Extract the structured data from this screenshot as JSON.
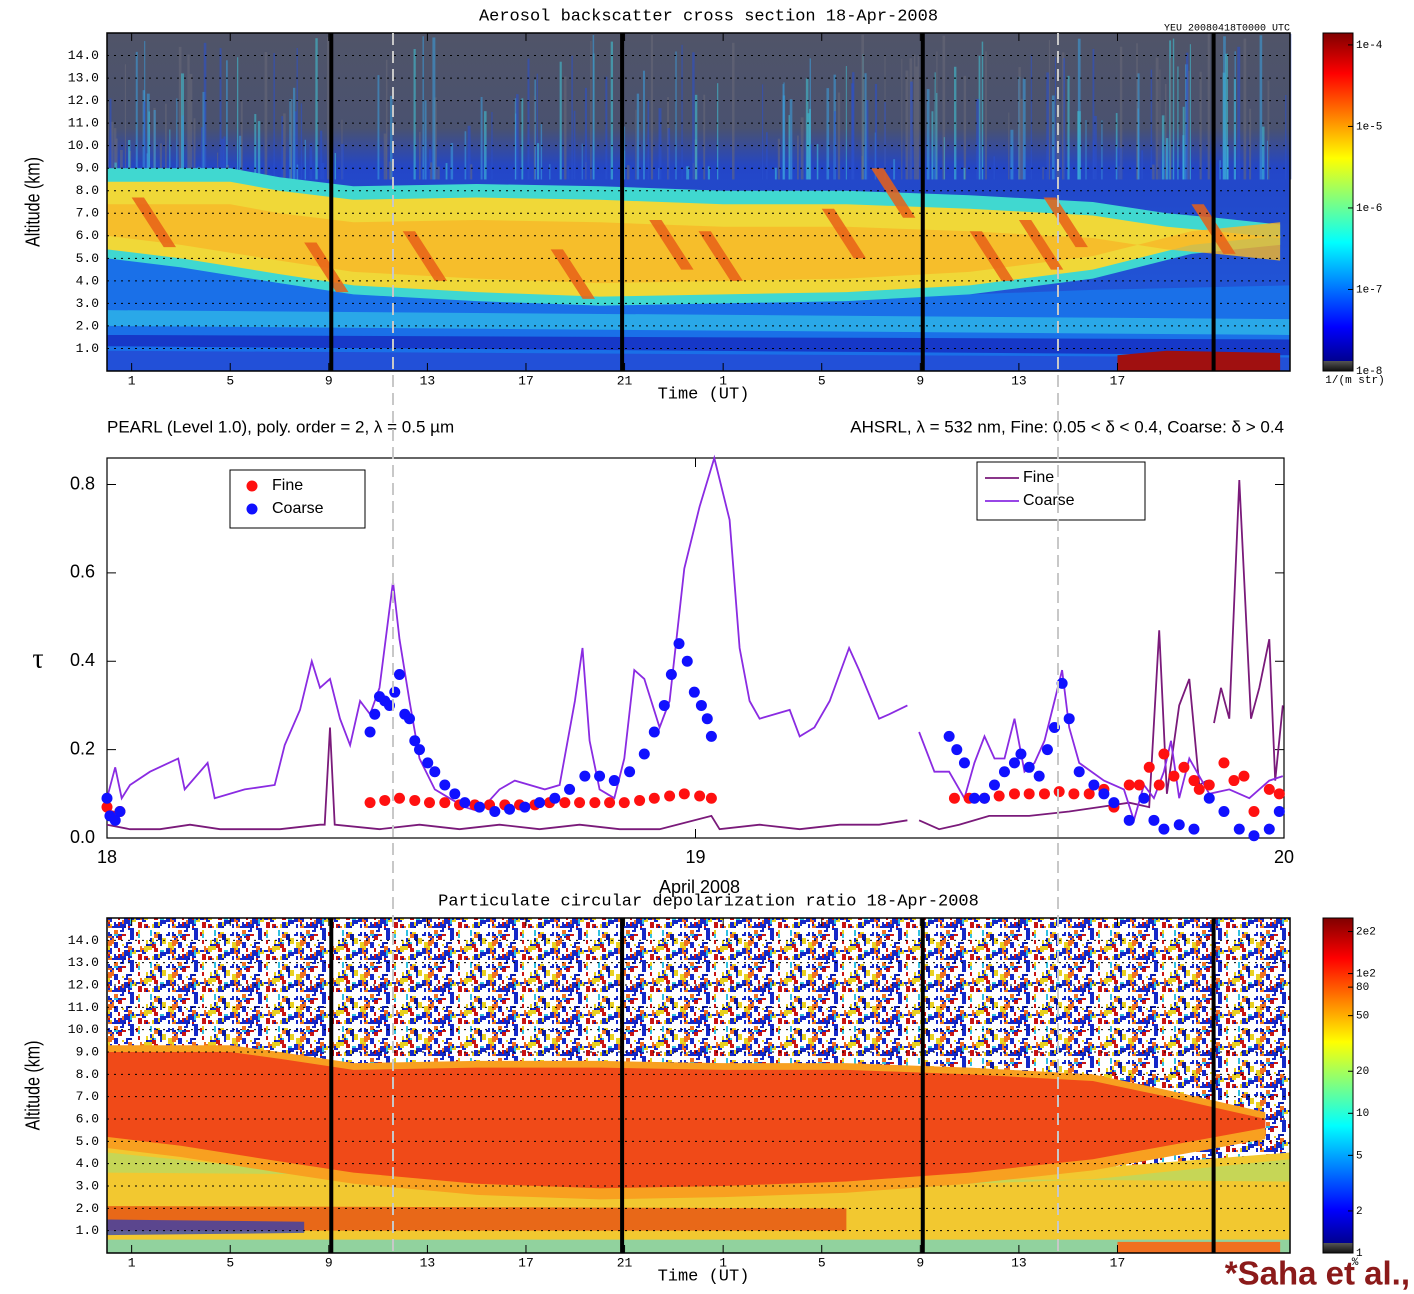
{
  "chart_data": [
    {
      "type": "heatmap",
      "title": "Aerosol backscatter cross section   18-Apr-2008",
      "stamp": "YEU    20080418T0000 UTC",
      "xlabel": "Time (UT)",
      "ylabel": "Altitude (km)",
      "xlim": [
        0,
        48
      ],
      "xticks": [
        1,
        5,
        9,
        13,
        17,
        21,
        {
          "value": 25,
          "label": "1"
        },
        {
          "value": 29,
          "label": "5"
        },
        {
          "value": 33,
          "label": "9"
        },
        {
          "value": 37,
          "label": "13"
        },
        {
          "value": 41,
          "label": "17"
        }
      ],
      "ylim": [
        0,
        15
      ],
      "yticks": [
        {
          "value": 1,
          "label": "1.0"
        },
        {
          "value": 2,
          "label": "2.0"
        },
        {
          "value": 3,
          "label": "3.0"
        },
        {
          "value": 4,
          "label": "4.0"
        },
        {
          "value": 5,
          "label": "5.0"
        },
        {
          "value": 6,
          "label": "6.0"
        },
        {
          "value": 7,
          "label": "7.0"
        },
        {
          "value": 8,
          "label": "8.0"
        },
        {
          "value": 9,
          "label": "9.0"
        },
        {
          "value": 10,
          "label": "10.0"
        },
        {
          "value": 11,
          "label": "11.0"
        },
        {
          "value": 12,
          "label": "12.0"
        },
        {
          "value": 13,
          "label": "13.0"
        },
        {
          "value": 14,
          "label": "14.0"
        }
      ],
      "grid": true,
      "colorbar": {
        "label": "1/(m str)",
        "scale": "log",
        "lim": [
          1e-08,
          0.00014
        ],
        "ticks": [
          {
            "value": 0.0001,
            "label": "1e-4"
          },
          {
            "value": 1e-05,
            "label": "1e-5"
          },
          {
            "value": 1e-06,
            "label": "1e-6"
          },
          {
            "value": 1e-07,
            "label": "1e-7"
          },
          {
            "value": 1e-08,
            "label": "1e-8"
          }
        ]
      }
    },
    {
      "type": "line",
      "title_left": "PEARL (Level 1.0), poly. order = 2, λ = 0.5 µm",
      "title_right": "AHSRL, λ = 532 nm, Fine: 0.05 < δ < 0.4, Coarse:  δ > 0.4",
      "xlabel": "April 2008",
      "ylabel": "τ",
      "xlim": [
        18,
        20
      ],
      "xticks": [
        18,
        19,
        20
      ],
      "ylim": [
        0,
        0.86
      ],
      "yticks": [
        {
          "value": 0,
          "label": "0.0"
        },
        0.2,
        0.4,
        0.6,
        0.8
      ],
      "series": [
        {
          "name": "Fine",
          "mark": "dot",
          "legend": "upper-left",
          "color": "#ff1010",
          "x": [
            18.0,
            18.008,
            18.022,
            18.447,
            18.472,
            18.497,
            18.523,
            18.548,
            18.574,
            18.599,
            18.625,
            18.65,
            18.676,
            18.701,
            18.727,
            18.752,
            18.778,
            18.803,
            18.829,
            18.854,
            18.879,
            18.905,
            18.93,
            18.956,
            18.981,
            19.007,
            19.027,
            19.44,
            19.465,
            19.491,
            19.516,
            19.542,
            19.567,
            19.593,
            19.618,
            19.643,
            19.669,
            19.694,
            19.711,
            19.737,
            19.754,
            19.771,
            19.788,
            19.796,
            19.813,
            19.83,
            19.847,
            19.856,
            19.873,
            19.898,
            19.915,
            19.932,
            19.949,
            19.975,
            19.992
          ],
          "values": [
            0.07,
            0.05,
            0.06,
            0.08,
            0.085,
            0.09,
            0.085,
            0.08,
            0.08,
            0.075,
            0.075,
            0.075,
            0.075,
            0.075,
            0.075,
            0.08,
            0.08,
            0.08,
            0.08,
            0.08,
            0.08,
            0.085,
            0.09,
            0.095,
            0.1,
            0.095,
            0.09,
            0.09,
            0.09,
            0.09,
            0.095,
            0.1,
            0.1,
            0.1,
            0.105,
            0.1,
            0.1,
            0.11,
            0.07,
            0.12,
            0.12,
            0.16,
            0.12,
            0.19,
            0.14,
            0.16,
            0.13,
            0.11,
            0.12,
            0.17,
            0.13,
            0.14,
            0.06,
            0.11,
            0.1
          ]
        },
        {
          "name": "Coarse",
          "mark": "dot",
          "legend": "upper-left",
          "color": "#1010ff",
          "x": [
            18.0,
            18.005,
            18.014,
            18.022,
            18.447,
            18.455,
            18.463,
            18.472,
            18.48,
            18.489,
            18.497,
            18.506,
            18.514,
            18.523,
            18.531,
            18.545,
            18.557,
            18.574,
            18.591,
            18.608,
            18.633,
            18.659,
            18.684,
            18.71,
            18.735,
            18.761,
            18.786,
            18.812,
            18.837,
            18.862,
            18.888,
            18.913,
            18.93,
            18.947,
            18.959,
            18.972,
            18.986,
            18.998,
            19.01,
            19.02,
            19.027,
            19.431,
            19.444,
            19.457,
            19.474,
            19.491,
            19.508,
            19.525,
            19.542,
            19.553,
            19.567,
            19.584,
            19.598,
            19.61,
            19.623,
            19.635,
            19.652,
            19.677,
            19.694,
            19.711,
            19.737,
            19.762,
            19.779,
            19.796,
            19.822,
            19.847,
            19.873,
            19.898,
            19.924,
            19.949,
            19.975,
            19.992
          ],
          "values": [
            0.09,
            0.05,
            0.04,
            0.06,
            0.24,
            0.28,
            0.32,
            0.31,
            0.3,
            0.33,
            0.37,
            0.28,
            0.27,
            0.22,
            0.2,
            0.17,
            0.15,
            0.12,
            0.1,
            0.08,
            0.07,
            0.06,
            0.065,
            0.07,
            0.08,
            0.09,
            0.11,
            0.14,
            0.14,
            0.13,
            0.15,
            0.19,
            0.24,
            0.3,
            0.37,
            0.44,
            0.4,
            0.33,
            0.3,
            0.27,
            0.23,
            0.23,
            0.2,
            0.17,
            0.09,
            0.09,
            0.12,
            0.15,
            0.17,
            0.19,
            0.16,
            0.14,
            0.2,
            0.25,
            0.35,
            0.27,
            0.15,
            0.12,
            0.1,
            0.08,
            0.04,
            0.09,
            0.04,
            0.02,
            0.03,
            0.02,
            0.09,
            0.06,
            0.02,
            0.005,
            0.02,
            0.06
          ]
        },
        {
          "name": "Fine",
          "mark": "line",
          "legend": "upper-right",
          "color": "#7a1a7a",
          "x": [
            18.0,
            18.039,
            18.09,
            18.141,
            18.192,
            18.243,
            18.294,
            18.362,
            18.37,
            18.379,
            18.387,
            18.463,
            18.531,
            18.599,
            18.667,
            18.735,
            18.803,
            18.871,
            18.939,
            19.027,
            19.041,
            19.109,
            19.177,
            19.245,
            19.312,
            19.36,
            null,
            19.38,
            19.414,
            19.448,
            19.499,
            19.567,
            19.635,
            19.686,
            19.737,
            19.771,
            19.788,
            19.801,
            19.822,
            19.839,
            19.856,
            19.869,
            null,
            19.881,
            19.893,
            19.907,
            19.924,
            19.944,
            19.958,
            19.975,
            19.985,
            19.998
          ],
          "values": [
            0.03,
            0.02,
            0.02,
            0.03,
            0.02,
            0.02,
            0.02,
            0.03,
            0.03,
            0.25,
            0.03,
            0.02,
            0.03,
            0.02,
            0.03,
            0.02,
            0.03,
            0.02,
            0.02,
            0.05,
            0.02,
            0.03,
            0.02,
            0.03,
            0.03,
            0.04,
            null,
            0.04,
            0.02,
            0.03,
            0.05,
            0.05,
            0.06,
            0.07,
            0.08,
            0.07,
            0.47,
            0.1,
            0.3,
            0.36,
            0.12,
            0.13,
            null,
            0.26,
            0.34,
            0.27,
            0.81,
            0.27,
            0.34,
            0.45,
            0.13,
            0.3
          ]
        },
        {
          "name": "Coarse",
          "mark": "line",
          "legend": "upper-right",
          "color": "#8a2be2",
          "x": [
            18.0,
            18.014,
            18.025,
            18.039,
            18.073,
            18.121,
            18.132,
            18.171,
            18.183,
            18.234,
            18.285,
            18.302,
            18.328,
            18.348,
            18.362,
            18.379,
            18.396,
            18.413,
            18.43,
            18.447,
            18.463,
            18.486,
            18.497,
            18.514,
            18.531,
            18.557,
            18.582,
            18.608,
            18.633,
            18.667,
            18.693,
            18.744,
            18.769,
            18.795,
            18.808,
            18.82,
            18.837,
            18.862,
            18.879,
            18.896,
            18.913,
            18.939,
            18.956,
            18.981,
            19.007,
            19.032,
            19.058,
            19.075,
            19.092,
            19.109,
            19.16,
            19.177,
            19.202,
            19.228,
            19.261,
            19.278,
            19.312,
            19.329,
            19.36,
            null,
            19.38,
            19.406,
            19.431,
            19.457,
            19.474,
            19.491,
            19.508,
            19.525,
            19.542,
            19.559,
            19.576,
            19.593,
            19.61,
            19.623,
            19.635,
            19.652,
            19.694,
            19.728,
            19.745,
            19.762,
            19.779,
            19.796,
            19.808,
            19.822,
            19.839,
            19.873,
            19.907,
            19.941,
            19.975,
            19.998
          ],
          "values": [
            0.09,
            0.16,
            0.09,
            0.12,
            0.15,
            0.18,
            0.11,
            0.17,
            0.09,
            0.11,
            0.12,
            0.21,
            0.29,
            0.4,
            0.34,
            0.36,
            0.27,
            0.21,
            0.31,
            0.28,
            0.34,
            0.58,
            0.45,
            0.31,
            0.18,
            0.11,
            0.09,
            0.07,
            0.06,
            0.11,
            0.13,
            0.11,
            0.12,
            0.31,
            0.43,
            0.22,
            0.11,
            0.09,
            0.18,
            0.38,
            0.36,
            0.25,
            0.31,
            0.61,
            0.75,
            0.86,
            0.72,
            0.43,
            0.31,
            0.27,
            0.29,
            0.23,
            0.25,
            0.31,
            0.43,
            0.38,
            0.27,
            0.28,
            0.3,
            null,
            0.24,
            0.15,
            0.15,
            0.09,
            0.17,
            0.23,
            0.18,
            0.18,
            0.27,
            0.15,
            0.17,
            0.22,
            0.31,
            0.38,
            0.25,
            0.17,
            0.13,
            0.11,
            0.04,
            0.12,
            0.09,
            0.15,
            0.22,
            0.09,
            0.18,
            0.1,
            0.11,
            0.09,
            0.13,
            0.14
          ]
        }
      ]
    },
    {
      "type": "heatmap",
      "title": "Particulate circular depolarization ratio   18-Apr-2008",
      "xlabel": "Time (UT)",
      "ylabel": "Altitude (km)",
      "xlim": [
        0,
        48
      ],
      "xticks": [
        1,
        5,
        9,
        13,
        17,
        21,
        {
          "value": 25,
          "label": "1"
        },
        {
          "value": 29,
          "label": "5"
        },
        {
          "value": 33,
          "label": "9"
        },
        {
          "value": 37,
          "label": "13"
        },
        {
          "value": 41,
          "label": "17"
        }
      ],
      "ylim": [
        0,
        15
      ],
      "yticks": [
        {
          "value": 1,
          "label": "1.0"
        },
        {
          "value": 2,
          "label": "2.0"
        },
        {
          "value": 3,
          "label": "3.0"
        },
        {
          "value": 4,
          "label": "4.0"
        },
        {
          "value": 5,
          "label": "5.0"
        },
        {
          "value": 6,
          "label": "6.0"
        },
        {
          "value": 7,
          "label": "7.0"
        },
        {
          "value": 8,
          "label": "8.0"
        },
        {
          "value": 9,
          "label": "9.0"
        },
        {
          "value": 10,
          "label": "10.0"
        },
        {
          "value": 11,
          "label": "11.0"
        },
        {
          "value": 12,
          "label": "12.0"
        },
        {
          "value": 13,
          "label": "13.0"
        },
        {
          "value": 14,
          "label": "14.0"
        }
      ],
      "grid": true,
      "colorbar": {
        "label": "%",
        "scale": "log",
        "lim": [
          1,
          250
        ],
        "ticks": [
          {
            "value": 200,
            "label": "2e2"
          },
          {
            "value": 100,
            "label": "1e2"
          },
          80,
          50,
          20,
          10,
          5,
          2,
          1
        ]
      }
    }
  ],
  "footer": "*Saha et al.,"
}
